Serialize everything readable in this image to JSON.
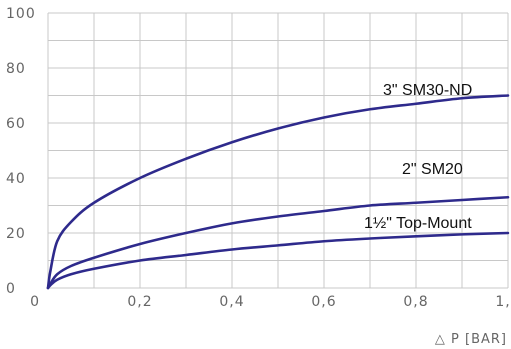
{
  "chart_data": {
    "type": "line",
    "title": "",
    "xlabel": "△ P [BAR]",
    "ylabel": "",
    "xlim": [
      0,
      1.0
    ],
    "ylim": [
      0,
      100
    ],
    "x_ticks": [
      0,
      0.2,
      0.4,
      0.6,
      0.8,
      1.0
    ],
    "x_tick_labels": [
      "0",
      "0,2",
      "0,4",
      "0,6",
      "0,8",
      "1,0"
    ],
    "y_ticks": [
      0,
      20,
      40,
      60,
      80,
      100
    ],
    "y_tick_labels": [
      "0",
      "20",
      "40",
      "60",
      "80",
      "100"
    ],
    "grid": true,
    "x": [
      0,
      0.005,
      0.02,
      0.05,
      0.1,
      0.2,
      0.3,
      0.4,
      0.5,
      0.6,
      0.7,
      0.8,
      0.9,
      1.0
    ],
    "series": [
      {
        "name": "3\" SM30-ND",
        "values": [
          0,
          6,
          17,
          24,
          31,
          40,
          47,
          53,
          58,
          62,
          65,
          67,
          69,
          70
        ]
      },
      {
        "name": "2\" SM20",
        "values": [
          0,
          1.5,
          5,
          8,
          11,
          16,
          20,
          23.5,
          26,
          28,
          30,
          31,
          32,
          33
        ]
      },
      {
        "name": "1½\" Top-Mount",
        "values": [
          0,
          1,
          3,
          5,
          7,
          10,
          12,
          14,
          15.5,
          17,
          18,
          18.8,
          19.5,
          20
        ]
      }
    ],
    "line_color": "#2e2a8c",
    "grid_color": "#c8c8c8"
  }
}
